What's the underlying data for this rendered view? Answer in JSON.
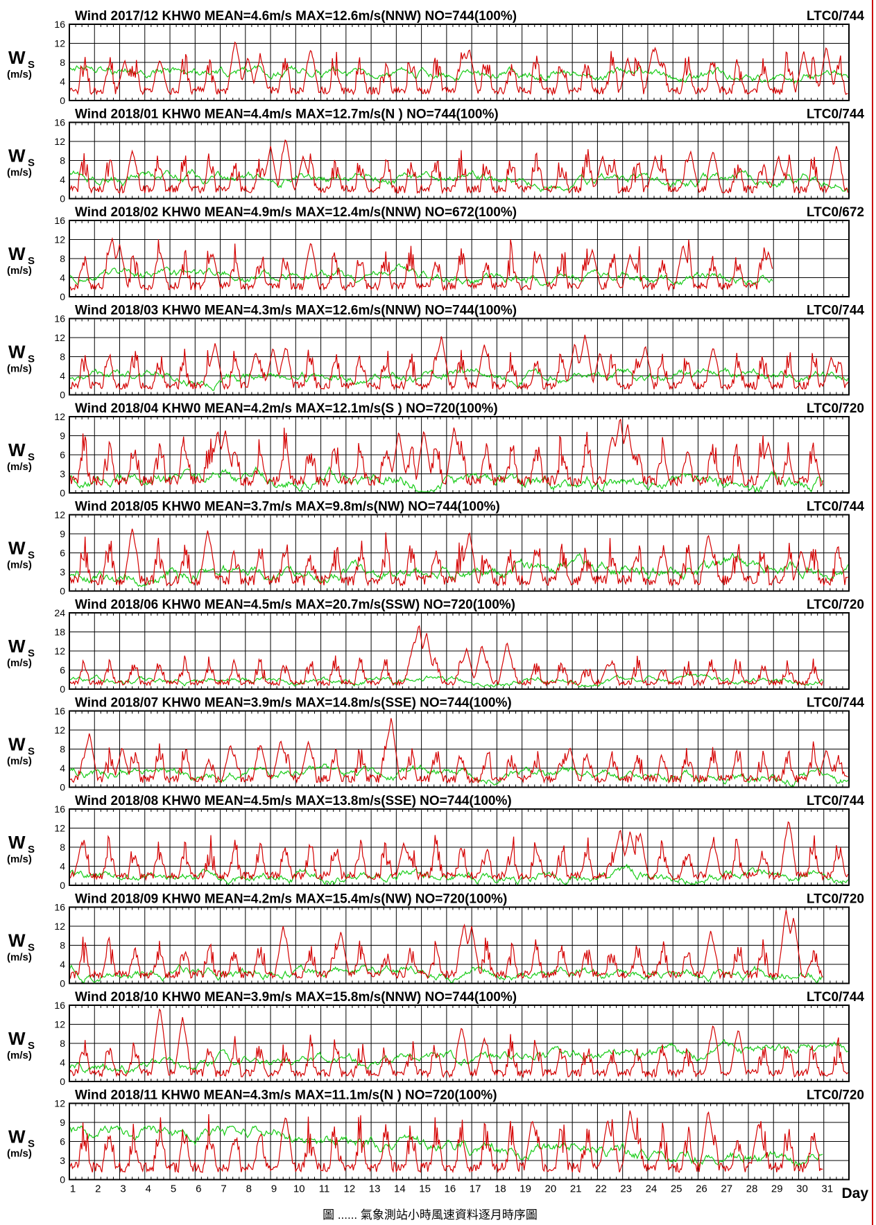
{
  "page": {
    "x_axis_label": "Day",
    "caption": "圖 ...... 氣象測站小時風速資料逐月時序圖",
    "right_border_color": "#cc0000"
  },
  "colors": {
    "series_1": "#d40000",
    "series_2": "#18cc18",
    "grid": "#000000"
  },
  "chart_data": [
    {
      "type": "line",
      "title": "Wind 2017/12 KHW0 MEAN=4.6m/s MAX=12.6m/s(NNW)  NO=744(100%)",
      "code": "LTC0/744",
      "ylabel_main": "W",
      "ylabel_sub": "S",
      "ylabel_unit": "(m/s)",
      "ylim": [
        0,
        16
      ],
      "yticks": [
        0,
        4,
        8,
        12,
        16
      ],
      "xlim": [
        1,
        32
      ],
      "days": 31,
      "mean": 4.6,
      "max": 12.6,
      "seed": 1,
      "series": [
        {
          "color": "red",
          "peaks": [
            [
              3.2,
              8.5
            ],
            [
              4.6,
              8.5
            ],
            [
              7.6,
              12.6
            ],
            [
              8.1,
              9.2
            ],
            [
              8.6,
              9
            ],
            [
              10.6,
              10.8
            ],
            [
              16.7,
              10
            ],
            [
              16.9,
              11
            ],
            [
              23.2,
              9
            ],
            [
              24.2,
              10.9
            ],
            [
              24.3,
              11.2
            ],
            [
              30.2,
              10.5
            ],
            [
              31.1,
              11.5
            ]
          ]
        },
        {
          "color": "green",
          "base": 6.2,
          "end": 5
        }
      ]
    },
    {
      "type": "line",
      "title": "Wind 2018/01 KHW0 MEAN=4.4m/s MAX=12.7m/s(N )  NO=744(100%)",
      "code": "LTC0/744",
      "ylabel_main": "W",
      "ylabel_sub": "S",
      "ylabel_unit": "(m/s)",
      "ylim": [
        0,
        16
      ],
      "yticks": [
        0,
        4,
        8,
        12,
        16
      ],
      "xlim": [
        1,
        32
      ],
      "days": 31,
      "mean": 4.4,
      "max": 12.7,
      "seed": 2,
      "series": [
        {
          "color": "red",
          "peaks": [
            [
              3.5,
              10
            ],
            [
              9.0,
              11
            ],
            [
              9.6,
              12.7
            ],
            [
              10.3,
              9
            ],
            [
              22.2,
              9
            ],
            [
              24.3,
              9
            ],
            [
              25.7,
              10
            ],
            [
              26.6,
              10
            ],
            [
              29.2,
              9
            ],
            [
              31.5,
              11
            ]
          ]
        },
        {
          "color": "green",
          "base": 4.5,
          "end": 4
        }
      ]
    },
    {
      "type": "line",
      "title": "Wind 2018/02 KHW0 MEAN=4.9m/s MAX=12.4m/s(NNW)  NO=672(100%)",
      "code": "LTC0/672",
      "ylabel_main": "W",
      "ylabel_sub": "S",
      "ylabel_unit": "(m/s)",
      "ylim": [
        0,
        16
      ],
      "yticks": [
        0,
        4,
        8,
        12,
        16
      ],
      "xlim": [
        1,
        32
      ],
      "days": 28,
      "mean": 4.9,
      "max": 12.4,
      "seed": 3,
      "series": [
        {
          "color": "red",
          "peaks": [
            [
              2.7,
              12.4
            ],
            [
              3.0,
              11
            ],
            [
              4.6,
              9.5
            ],
            [
              6.7,
              9
            ],
            [
              10.6,
              11.5
            ],
            [
              19.7,
              9
            ],
            [
              21.8,
              10
            ],
            [
              23.3,
              9
            ],
            [
              25.4,
              11
            ],
            [
              28.8,
              9.5
            ]
          ]
        },
        {
          "color": "green",
          "base": 4.5,
          "end": 4
        }
      ]
    },
    {
      "type": "line",
      "title": "Wind 2018/03 KHW0 MEAN=4.3m/s MAX=12.6m/s(NNW)  NO=744(100%)",
      "code": "LTC0/744",
      "ylabel_main": "W",
      "ylabel_sub": "S",
      "ylabel_unit": "(m/s)",
      "ylim": [
        0,
        16
      ],
      "yticks": [
        0,
        4,
        8,
        12,
        16
      ],
      "xlim": [
        1,
        32
      ],
      "days": 31,
      "mean": 4.3,
      "max": 12.6,
      "seed": 4,
      "series": [
        {
          "color": "red",
          "peaks": [
            [
              6.8,
              11
            ],
            [
              8.4,
              9
            ],
            [
              9.1,
              10
            ],
            [
              9.6,
              10
            ],
            [
              15.8,
              12.5
            ],
            [
              17.5,
              10.5
            ],
            [
              21.1,
              11
            ],
            [
              21.5,
              12.6
            ],
            [
              22.1,
              9
            ],
            [
              23.9,
              10.5
            ],
            [
              26.6,
              10
            ],
            [
              31.3,
              8
            ]
          ]
        },
        {
          "color": "green",
          "base": 3.5,
          "end": 4
        }
      ]
    },
    {
      "type": "line",
      "title": "Wind 2018/04 KHW0 MEAN=4.2m/s MAX=12.1m/s(S )  NO=720(100%)",
      "code": "LTC0/720",
      "ylabel_main": "W",
      "ylabel_sub": "S",
      "ylabel_unit": "(m/s)",
      "ylim": [
        0,
        12
      ],
      "yticks": [
        0,
        3,
        6,
        9,
        12
      ],
      "xlim": [
        1,
        32
      ],
      "days": 30,
      "mean": 4.2,
      "max": 12.1,
      "seed": 5,
      "series": [
        {
          "color": "red",
          "peaks": [
            [
              6.9,
              10
            ],
            [
              7.2,
              10
            ],
            [
              14.1,
              9.8
            ],
            [
              15.1,
              10
            ],
            [
              16.3,
              10.5
            ],
            [
              22.6,
              9
            ],
            [
              22.9,
              12.1
            ],
            [
              23.2,
              11
            ],
            [
              28.8,
              8
            ]
          ]
        },
        {
          "color": "green",
          "base": 2.5,
          "end": 1.5
        }
      ]
    },
    {
      "type": "line",
      "title": "Wind 2018/05 KHW0 MEAN=3.7m/s MAX=9.8m/s(NW)  NO=744(100%)",
      "code": "LTC0/744",
      "ylabel_main": "W",
      "ylabel_sub": "S",
      "ylabel_unit": "(m/s)",
      "ylim": [
        0,
        12
      ],
      "yticks": [
        0,
        3,
        6,
        9,
        12
      ],
      "xlim": [
        1,
        32
      ],
      "days": 31,
      "mean": 3.7,
      "max": 9.8,
      "seed": 6,
      "series": [
        {
          "color": "red",
          "peaks": [
            [
              3.5,
              9.8
            ],
            [
              6.5,
              9.5
            ],
            [
              16.9,
              9.5
            ],
            [
              26.4,
              9
            ],
            [
              30.1,
              6.5
            ]
          ]
        },
        {
          "color": "green",
          "base": 2.2,
          "end": 4
        }
      ]
    },
    {
      "type": "line",
      "title": "Wind 2018/06 KHW0 MEAN=4.5m/s MAX=20.7m/s(SSW)  NO=720(100%)",
      "code": "LTC0/720",
      "ylabel_main": "W",
      "ylabel_sub": "S",
      "ylabel_unit": "(m/s)",
      "ylim": [
        0,
        24
      ],
      "yticks": [
        0,
        6,
        12,
        18,
        24
      ],
      "xlim": [
        1,
        32
      ],
      "days": 30,
      "mean": 4.5,
      "max": 20.7,
      "seed": 7,
      "series": [
        {
          "color": "red",
          "peaks": [
            [
              14.7,
              15
            ],
            [
              14.9,
              20.7
            ],
            [
              15.2,
              18
            ],
            [
              16.8,
              13
            ],
            [
              17.4,
              14
            ],
            [
              18.4,
              15
            ],
            [
              22.4,
              8
            ],
            [
              26.5,
              7
            ]
          ]
        },
        {
          "color": "green",
          "base": 2.5,
          "end": 3
        }
      ]
    },
    {
      "type": "line",
      "title": "Wind 2018/07 KHW0 MEAN=3.9m/s MAX=14.8m/s(SSE)  NO=744(100%)",
      "code": "LTC0/744",
      "ylabel_main": "W",
      "ylabel_sub": "S",
      "ylabel_unit": "(m/s)",
      "ylim": [
        0,
        16
      ],
      "yticks": [
        0,
        4,
        8,
        12,
        16
      ],
      "xlim": [
        1,
        32
      ],
      "days": 31,
      "mean": 3.9,
      "max": 14.8,
      "seed": 8,
      "series": [
        {
          "color": "red",
          "peaks": [
            [
              1.8,
              11.5
            ],
            [
              3.1,
              8.5
            ],
            [
              7.4,
              9
            ],
            [
              8.6,
              9
            ],
            [
              9.4,
              10
            ],
            [
              10.5,
              9.5
            ],
            [
              13.8,
              14.8
            ],
            [
              20.9,
              8.5
            ],
            [
              31.1,
              8
            ]
          ]
        },
        {
          "color": "green",
          "base": 3,
          "end": 2
        }
      ]
    },
    {
      "type": "line",
      "title": "Wind 2018/08 KHW0 MEAN=4.5m/s MAX=13.8m/s(SSE)  NO=744(100%)",
      "code": "LTC0/744",
      "ylabel_main": "W",
      "ylabel_sub": "S",
      "ylabel_unit": "(m/s)",
      "ylim": [
        0,
        16
      ],
      "yticks": [
        0,
        4,
        8,
        12,
        16
      ],
      "xlim": [
        1,
        32
      ],
      "days": 31,
      "mean": 4.5,
      "max": 13.8,
      "seed": 9,
      "series": [
        {
          "color": "red",
          "peaks": [
            [
              1.5,
              9
            ],
            [
              14.3,
              9
            ],
            [
              22.9,
              12
            ],
            [
              23.3,
              11.5
            ],
            [
              23.7,
              11
            ],
            [
              26.6,
              9
            ],
            [
              29.6,
              13.8
            ]
          ]
        },
        {
          "color": "green",
          "base": 2,
          "end": 2
        }
      ]
    },
    {
      "type": "line",
      "title": "Wind 2018/09 KHW0 MEAN=4.2m/s MAX=15.4m/s(NW)  NO=720(100%)",
      "code": "LTC0/720",
      "ylabel_main": "W",
      "ylabel_sub": "S",
      "ylabel_unit": "(m/s)",
      "ylim": [
        0,
        16
      ],
      "yticks": [
        0,
        4,
        8,
        12,
        16
      ],
      "xlim": [
        1,
        32
      ],
      "days": 30,
      "mean": 4.2,
      "max": 15.4,
      "seed": 10,
      "series": [
        {
          "color": "red",
          "peaks": [
            [
              9.5,
              12
            ],
            [
              11.8,
              11
            ],
            [
              16.7,
              12.5
            ],
            [
              17.0,
              12
            ],
            [
              26.5,
              11
            ],
            [
              29.5,
              15.4
            ],
            [
              29.8,
              14
            ]
          ]
        },
        {
          "color": "green",
          "base": 2.5,
          "end": 2
        }
      ]
    },
    {
      "type": "line",
      "title": "Wind 2018/10 KHW0 MEAN=3.9m/s MAX=15.8m/s(NNW)  NO=744(100%)",
      "code": "LTC0/744",
      "ylabel_main": "W",
      "ylabel_sub": "S",
      "ylabel_unit": "(m/s)",
      "ylim": [
        0,
        16
      ],
      "yticks": [
        0,
        4,
        8,
        12,
        16
      ],
      "xlim": [
        1,
        32
      ],
      "days": 31,
      "mean": 3.9,
      "max": 15.8,
      "seed": 11,
      "series": [
        {
          "color": "red",
          "peaks": [
            [
              4.6,
              15.8
            ],
            [
              5.5,
              13.5
            ],
            [
              16.6,
              11.5
            ],
            [
              17.5,
              9
            ],
            [
              26.6,
              12
            ],
            [
              27.6,
              11
            ]
          ]
        },
        {
          "color": "green",
          "base": 3,
          "end": 7
        }
      ]
    },
    {
      "type": "line",
      "title": "Wind 2018/11 KHW0 MEAN=4.3m/s MAX=11.1m/s(N )  NO=720(100%)",
      "code": "LTC0/720",
      "ylabel_main": "W",
      "ylabel_sub": "S",
      "ylabel_unit": "(m/s)",
      "ylim": [
        0,
        12
      ],
      "yticks": [
        0,
        3,
        6,
        9,
        12
      ],
      "xlim": [
        1,
        32
      ],
      "days": 30,
      "mean": 4.3,
      "max": 11.1,
      "seed": 12,
      "series": [
        {
          "color": "red",
          "peaks": [
            [
              9.6,
              10
            ],
            [
              19.4,
              9.5
            ],
            [
              22.4,
              9.5
            ],
            [
              23.3,
              11.1
            ],
            [
              26.4,
              11
            ],
            [
              28.4,
              9
            ]
          ]
        },
        {
          "color": "green",
          "base": 8,
          "end": 3
        }
      ]
    }
  ],
  "x_ticks": [
    "1",
    "2",
    "3",
    "4",
    "5",
    "6",
    "7",
    "8",
    "9",
    "10",
    "11",
    "12",
    "13",
    "14",
    "15",
    "16",
    "17",
    "18",
    "19",
    "20",
    "21",
    "22",
    "23",
    "24",
    "25",
    "26",
    "27",
    "28",
    "29",
    "30",
    "31"
  ]
}
